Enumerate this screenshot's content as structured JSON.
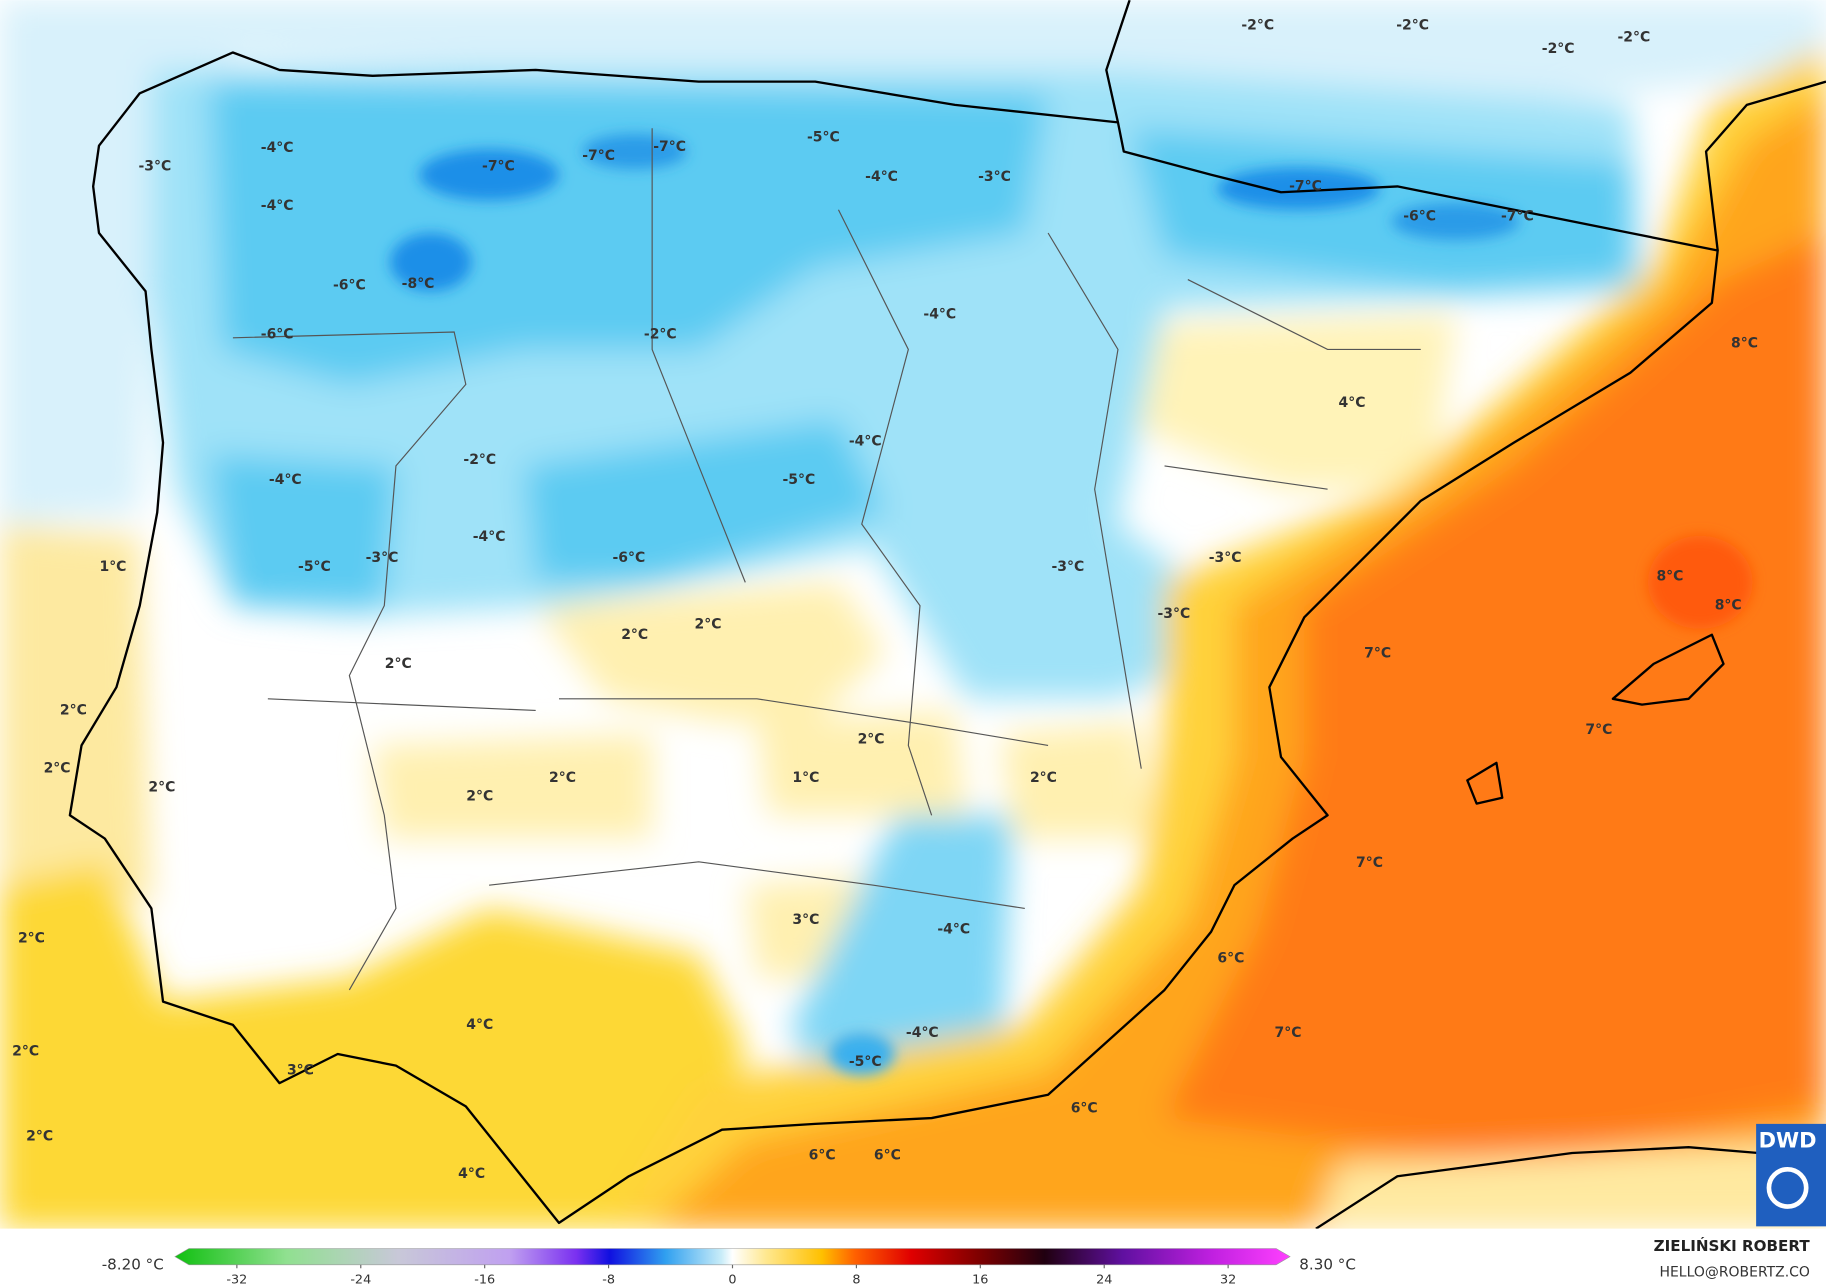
{
  "map": {
    "temperature_labels": [
      "-2°C",
      "-2°C",
      "-2°C",
      "-2°C",
      "-3°C",
      "-4°C",
      "-7°C",
      "-7°C",
      "-7°C",
      "-5°C",
      "-4°C",
      "-3°C",
      "-7°C",
      "-6°C",
      "-7°C",
      "-4°C",
      "-6°C",
      "-8°C",
      "-6°C",
      "-2°C",
      "-4°C",
      "8°C",
      "4°C",
      "-4°C",
      "-2°C",
      "-5°C",
      "-4°C",
      "-4°C",
      "-6°C",
      "-3°C",
      "-5°C",
      "-3°C",
      "-3°C",
      "1°C",
      "8°C",
      "8°C",
      "-3°C",
      "2°C",
      "2°C",
      "7°C",
      "2°C",
      "2°C",
      "7°C",
      "2°C",
      "2°C",
      "1°C",
      "2°C",
      "2°C",
      "2°C",
      "2°C",
      "7°C",
      "3°C",
      "-4°C",
      "2°C",
      "6°C",
      "4°C",
      "-4°C",
      "7°C",
      "2°C",
      "-5°C",
      "3°C",
      "6°C",
      "2°C",
      "6°C",
      "6°C",
      "4°C"
    ]
  },
  "colorbar": {
    "min_label": "-8.20 °C",
    "max_label": "8.30 °C",
    "range": [
      -36,
      36
    ],
    "ticks": [
      -32,
      -24,
      -16,
      -8,
      0,
      8,
      16,
      24,
      32
    ]
  },
  "credits": {
    "author": "ZIELIŃSKI ROBERT",
    "contact": "HELLO@ROBERTZ.CO",
    "logo": "DWD"
  }
}
